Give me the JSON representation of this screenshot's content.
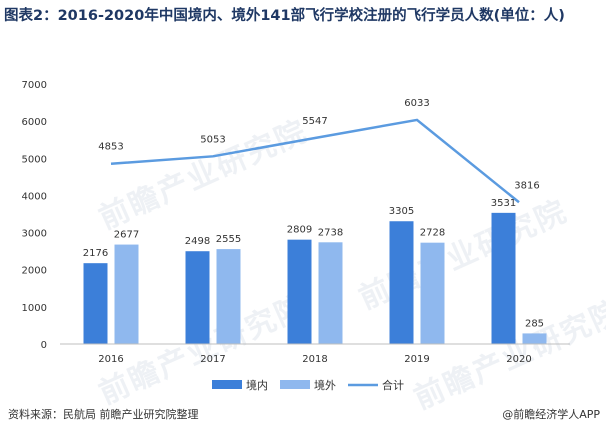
{
  "title": "图表2：2016-2020年中国境内、境外141部飞行学校注册的飞行学员人数(单位：人)",
  "source": "资料来源：民航局 前瞻产业研究院整理",
  "brand": "@前瞻经济学人APP",
  "watermark": "前瞻产业研究院",
  "colors": {
    "domestic": "#3c7fd9",
    "overseas": "#8fb8ee",
    "total": "#5b9be0",
    "title": "#1f3864"
  },
  "chart_data": {
    "type": "bar",
    "categories": [
      "2016",
      "2017",
      "2018",
      "2019",
      "2020"
    ],
    "series": [
      {
        "name": "境内",
        "type": "bar",
        "values": [
          2176,
          2498,
          2809,
          3305,
          3531
        ]
      },
      {
        "name": "境外",
        "type": "bar",
        "values": [
          2677,
          2555,
          2738,
          2728,
          285
        ]
      },
      {
        "name": "合计",
        "type": "line",
        "values": [
          4853,
          5053,
          5547,
          6033,
          3816
        ]
      }
    ],
    "yticks": [
      0,
      1000,
      2000,
      3000,
      4000,
      5000,
      6000,
      7000
    ],
    "ylim": [
      0,
      7000
    ],
    "grid": false,
    "legend": "bottom"
  }
}
